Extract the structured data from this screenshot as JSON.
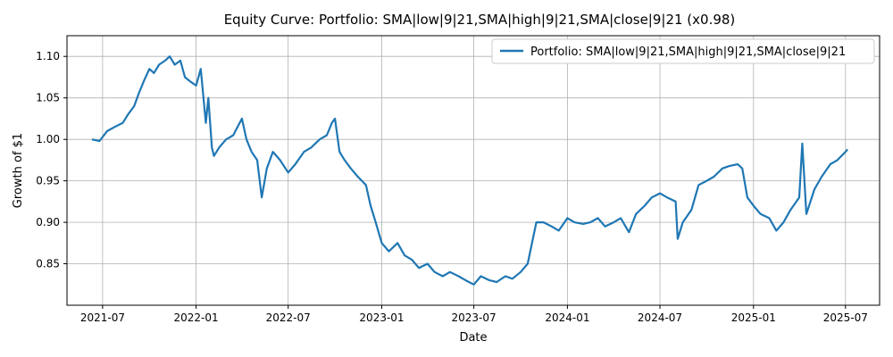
{
  "chart_data": {
    "type": "line",
    "title": "Equity Curve: Portfolio: SMA|low|9|21,SMA|high|9|21,SMA|close|9|21 (x0.98)",
    "xlabel": "Date",
    "ylabel": "Growth of $1",
    "xlim": [
      "2021-04-22",
      "2025-09-06"
    ],
    "ylim": [
      0.8,
      1.125
    ],
    "x_ticks": [
      "2021-07-01",
      "2022-01-01",
      "2022-07-01",
      "2023-01-01",
      "2023-07-01",
      "2024-01-01",
      "2024-07-01",
      "2025-01-01",
      "2025-07-01"
    ],
    "x_tick_labels": [
      "2021-07",
      "2022-01",
      "2022-07",
      "2023-01",
      "2023-07",
      "2024-01",
      "2024-07",
      "2025-01",
      "2025-07"
    ],
    "y_ticks": [
      0.85,
      0.9,
      0.95,
      1.0,
      1.05,
      1.1
    ],
    "y_tick_labels": [
      "0.85",
      "0.90",
      "0.95",
      "1.00",
      "1.05",
      "1.10"
    ],
    "grid": true,
    "legend_position": "top-right",
    "line_color": "#1f77b4",
    "series": [
      {
        "name": "Portfolio: SMA|low|9|21,SMA|high|9|21,SMA|close|9|21",
        "x": [
          "2021-06-10",
          "2021-06-25",
          "2021-07-10",
          "2021-07-25",
          "2021-08-10",
          "2021-08-20",
          "2021-09-01",
          "2021-09-10",
          "2021-09-20",
          "2021-10-01",
          "2021-10-10",
          "2021-10-20",
          "2021-11-01",
          "2021-11-10",
          "2021-11-20",
          "2021-12-01",
          "2021-12-10",
          "2021-12-20",
          "2022-01-01",
          "2022-01-10",
          "2022-01-20",
          "2022-01-25",
          "2022-02-01",
          "2022-02-05",
          "2022-02-15",
          "2022-03-01",
          "2022-03-15",
          "2022-04-01",
          "2022-04-10",
          "2022-04-20",
          "2022-05-01",
          "2022-05-10",
          "2022-05-20",
          "2022-06-01",
          "2022-06-15",
          "2022-07-01",
          "2022-07-15",
          "2022-08-01",
          "2022-08-15",
          "2022-09-01",
          "2022-09-15",
          "2022-09-25",
          "2022-10-01",
          "2022-10-10",
          "2022-10-20",
          "2022-11-01",
          "2022-11-15",
          "2022-12-01",
          "2022-12-10",
          "2022-12-20",
          "2023-01-01",
          "2023-01-15",
          "2023-02-01",
          "2023-02-15",
          "2023-03-01",
          "2023-03-15",
          "2023-04-01",
          "2023-04-15",
          "2023-05-01",
          "2023-05-15",
          "2023-06-01",
          "2023-06-15",
          "2023-07-01",
          "2023-07-15",
          "2023-08-01",
          "2023-08-15",
          "2023-09-01",
          "2023-09-15",
          "2023-10-01",
          "2023-10-15",
          "2023-11-01",
          "2023-11-15",
          "2023-12-01",
          "2023-12-15",
          "2024-01-01",
          "2024-01-15",
          "2024-02-01",
          "2024-02-15",
          "2024-03-01",
          "2024-03-15",
          "2024-04-01",
          "2024-04-15",
          "2024-05-01",
          "2024-05-15",
          "2024-06-01",
          "2024-06-15",
          "2024-07-01",
          "2024-07-15",
          "2024-08-01",
          "2024-08-05",
          "2024-08-15",
          "2024-09-01",
          "2024-09-15",
          "2024-10-01",
          "2024-10-15",
          "2024-11-01",
          "2024-11-15",
          "2024-12-01",
          "2024-12-10",
          "2024-12-20",
          "2025-01-01",
          "2025-01-15",
          "2025-02-01",
          "2025-02-15",
          "2025-03-01",
          "2025-03-15",
          "2025-04-01",
          "2025-04-07",
          "2025-04-15",
          "2025-05-01",
          "2025-05-15",
          "2025-06-01",
          "2025-06-15",
          "2025-07-01",
          "2025-07-05"
        ],
        "values": [
          1.0,
          0.998,
          1.01,
          1.015,
          1.02,
          1.03,
          1.04,
          1.055,
          1.07,
          1.085,
          1.08,
          1.09,
          1.095,
          1.1,
          1.09,
          1.095,
          1.075,
          1.07,
          1.065,
          1.085,
          1.02,
          1.05,
          0.99,
          0.98,
          0.99,
          1.0,
          1.005,
          1.025,
          1.0,
          0.985,
          0.975,
          0.93,
          0.965,
          0.985,
          0.975,
          0.96,
          0.97,
          0.985,
          0.99,
          1.0,
          1.005,
          1.02,
          1.025,
          0.985,
          0.975,
          0.965,
          0.955,
          0.945,
          0.92,
          0.9,
          0.875,
          0.865,
          0.875,
          0.86,
          0.855,
          0.845,
          0.85,
          0.84,
          0.835,
          0.84,
          0.835,
          0.83,
          0.825,
          0.835,
          0.83,
          0.828,
          0.835,
          0.832,
          0.84,
          0.85,
          0.9,
          0.9,
          0.895,
          0.89,
          0.905,
          0.9,
          0.898,
          0.9,
          0.905,
          0.895,
          0.9,
          0.905,
          0.888,
          0.91,
          0.92,
          0.93,
          0.935,
          0.93,
          0.925,
          0.88,
          0.9,
          0.915,
          0.945,
          0.95,
          0.955,
          0.965,
          0.968,
          0.97,
          0.965,
          0.93,
          0.92,
          0.91,
          0.905,
          0.89,
          0.9,
          0.915,
          0.93,
          0.995,
          0.91,
          0.94,
          0.955,
          0.97,
          0.975,
          0.985,
          0.988
        ]
      }
    ]
  }
}
